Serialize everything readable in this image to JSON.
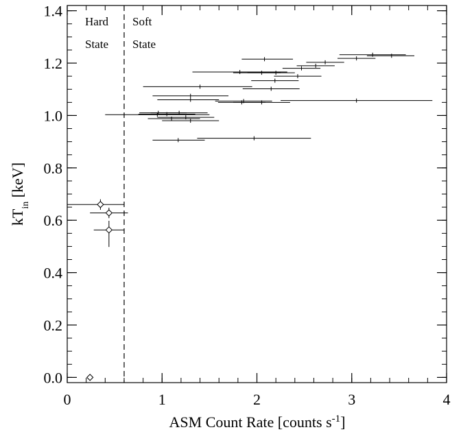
{
  "chart_data": {
    "type": "scatter",
    "xlabel": "ASM Count Rate [counts s-1]",
    "xlabel_parts": {
      "main": "ASM Count Rate [counts s",
      "sup": "-1",
      "end": "]"
    },
    "ylabel": "kT_in [keV]",
    "ylabel_parts": {
      "main": "kT",
      "sub": "in",
      "end": " [keV]"
    },
    "xlim": [
      0,
      4
    ],
    "ylim": [
      -0.02,
      1.42
    ],
    "x_ticks": [
      0,
      1,
      2,
      3,
      4
    ],
    "x_tick_labels": [
      "0",
      "1",
      "2",
      "3",
      "4"
    ],
    "y_ticks": [
      0.0,
      0.2,
      0.4,
      0.6,
      0.8,
      1.0,
      1.2,
      1.4
    ],
    "y_tick_labels": [
      "0.0",
      "0.2",
      "0.4",
      "0.6",
      "0.8",
      "1.0",
      "1.2",
      "1.4"
    ],
    "grid": false,
    "state_boundary_x": 0.6,
    "annotations": {
      "hard_1": "Hard",
      "hard_2": "State",
      "soft_1": "Soft",
      "soft_2": "State"
    },
    "series": [
      {
        "marker": "diamond",
        "points": [
          {
            "x": 0.35,
            "y": 0.66,
            "xerr": [
              0.35,
              0.25
            ],
            "yerr": [
              0.02,
              0.02
            ]
          },
          {
            "x": 0.44,
            "y": 0.628,
            "xerr": [
              0.2,
              0.2
            ],
            "yerr": [
              0.02,
              0.02
            ]
          },
          {
            "x": 0.44,
            "y": 0.563,
            "xerr": [
              0.16,
              0.16
            ],
            "yerr": [
              0.065,
              0.035
            ]
          },
          {
            "x": 0.24,
            "y": 0.0,
            "xerr": [
              0,
              0
            ],
            "yerr": [
              0,
              0
            ]
          }
        ]
      },
      {
        "marker": "tick",
        "points": [
          {
            "x": 3.22,
            "y": 1.232,
            "xerr": [
              0.35,
              0.35
            ]
          },
          {
            "x": 3.42,
            "y": 1.228,
            "xerr": [
              0.26,
              0.24
            ]
          },
          {
            "x": 3.05,
            "y": 1.218,
            "xerr": [
              0.2,
              0.2
            ]
          },
          {
            "x": 2.08,
            "y": 1.215,
            "xerr": [
              0.24,
              0.3
            ]
          },
          {
            "x": 2.72,
            "y": 1.203,
            "xerr": [
              0.2,
              0.2
            ]
          },
          {
            "x": 2.62,
            "y": 1.19,
            "xerr": [
              0.2,
              0.2
            ]
          },
          {
            "x": 2.47,
            "y": 1.18,
            "xerr": [
              0.2,
              0.2
            ]
          },
          {
            "x": 1.82,
            "y": 1.166,
            "xerr": [
              0.5,
              0.5
            ]
          },
          {
            "x": 2.05,
            "y": 1.163,
            "xerr": [
              0.3,
              0.2
            ]
          },
          {
            "x": 2.2,
            "y": 1.163,
            "xerr": [
              0.3,
              0.2
            ]
          },
          {
            "x": 2.43,
            "y": 1.15,
            "xerr": [
              0.25,
              0.25
            ]
          },
          {
            "x": 2.19,
            "y": 1.133,
            "xerr": [
              0.25,
              0.25
            ]
          },
          {
            "x": 1.4,
            "y": 1.11,
            "xerr": [
              0.6,
              0.55
            ]
          },
          {
            "x": 2.15,
            "y": 1.102,
            "xerr": [
              0.3,
              0.3
            ]
          },
          {
            "x": 1.3,
            "y": 1.075,
            "xerr": [
              0.4,
              0.4
            ]
          },
          {
            "x": 1.3,
            "y": 1.06,
            "xerr": [
              0.35,
              0.3
            ]
          },
          {
            "x": 1.86,
            "y": 1.055,
            "xerr": [
              0.3,
              0.3
            ]
          },
          {
            "x": 2.05,
            "y": 1.05,
            "xerr": [
              0.3,
              0.3
            ]
          },
          {
            "x": 3.05,
            "y": 1.057,
            "xerr": [
              0.8,
              0.8
            ]
          },
          {
            "x": 1.84,
            "y": 1.05,
            "xerr": [
              0.25,
              0.25
            ]
          },
          {
            "x": 0.95,
            "y": 1.003,
            "xerr": [
              0.55,
              0.55
            ]
          },
          {
            "x": 0.96,
            "y": 1.01,
            "xerr": [
              0.2,
              0.3
            ]
          },
          {
            "x": 1.05,
            "y": 1.005,
            "xerr": [
              0.3,
              0.3
            ]
          },
          {
            "x": 1.18,
            "y": 1.01,
            "xerr": [
              0.3,
              0.3
            ]
          },
          {
            "x": 1.25,
            "y": 0.993,
            "xerr": [
              0.3,
              0.3
            ]
          },
          {
            "x": 1.1,
            "y": 0.988,
            "xerr": [
              0.25,
              0.3
            ]
          },
          {
            "x": 1.3,
            "y": 0.98,
            "xerr": [
              0.3,
              0.3
            ]
          },
          {
            "x": 1.17,
            "y": 0.906,
            "xerr": [
              0.27,
              0.28
            ]
          },
          {
            "x": 1.97,
            "y": 0.913,
            "xerr": [
              0.6,
              0.6
            ]
          }
        ]
      }
    ]
  }
}
